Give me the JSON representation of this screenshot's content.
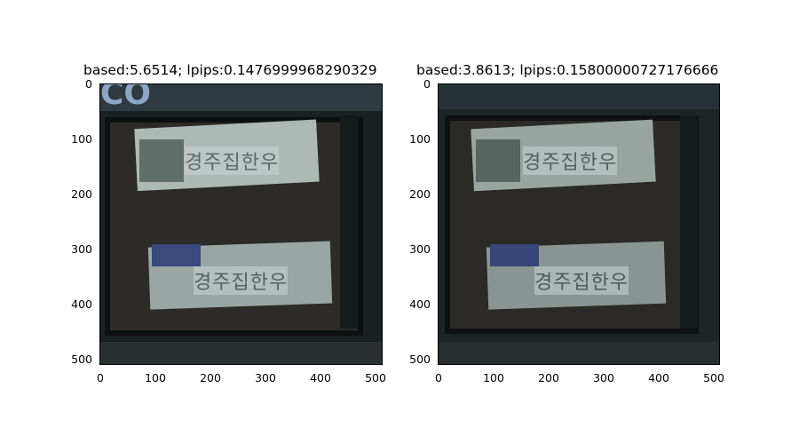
{
  "panels": [
    {
      "title": "based:5.6514; lpips:0.1476999968290329",
      "yticks": [
        "0",
        "100",
        "200",
        "300",
        "400",
        "500"
      ],
      "xticks": [
        "0",
        "100",
        "200",
        "300",
        "400",
        "500"
      ],
      "sign_top": "경주집한우",
      "sign_bottom": "경주집한우"
    },
    {
      "title": "based:3.8613; lpips:0.15800000727176666",
      "yticks": [
        "0",
        "100",
        "200",
        "300",
        "400",
        "500"
      ],
      "xticks": [
        "0",
        "100",
        "200",
        "300",
        "400",
        "500"
      ],
      "sign_top": "경주집한우",
      "sign_bottom": "경주집한우"
    }
  ],
  "colors": {
    "photo_dark": "#1c2224",
    "photo_mid": "#2b3335",
    "sign": "#c9d6d3"
  }
}
